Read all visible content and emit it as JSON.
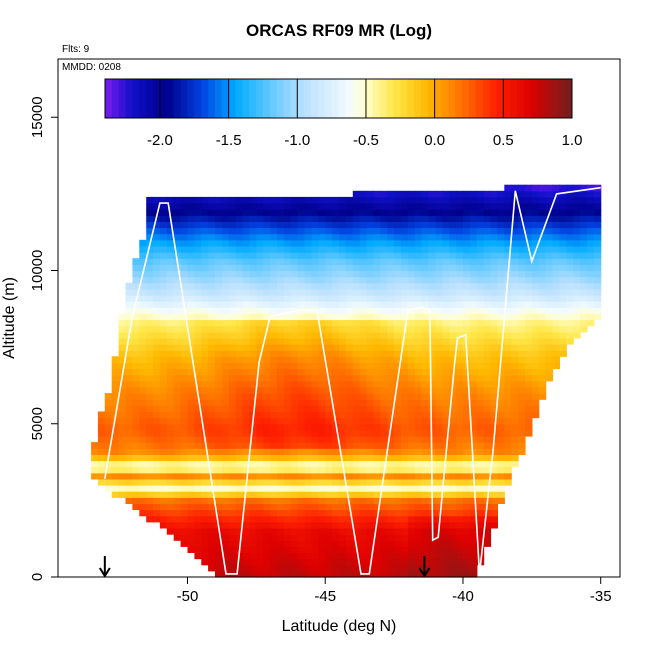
{
  "chart_data": {
    "type": "heatmap",
    "title": "ORCAS RF09 MR (Log)",
    "flights_label": "Flts: 9",
    "date_label": "MMDD: 0208",
    "xlabel": "Latitude (deg N)",
    "ylabel": "Altitude (m)",
    "xlim": [
      -54.7,
      -34.3
    ],
    "ylim": [
      0,
      16900
    ],
    "xticks": [
      -50,
      -45,
      -40,
      -35
    ],
    "xtick_labels": [
      "-50",
      "-45",
      "-40",
      "-35"
    ],
    "yticks": [
      0,
      5000,
      10000,
      15000
    ],
    "ytick_labels": [
      "0",
      "5000",
      "10000",
      "15000"
    ],
    "colorbar": {
      "range": [
        -2.4,
        1.0
      ],
      "ticks": [
        -2.0,
        -1.5,
        -1.0,
        -0.5,
        0.0,
        0.5,
        1.0
      ],
      "tick_labels": [
        "-2.0",
        "-1.5",
        "-1.0",
        "-0.5",
        "0.0",
        "0.5",
        "1.0"
      ],
      "stops": [
        {
          "v": -2.4,
          "color": "#7a1cf0"
        },
        {
          "v": -2.2,
          "color": "#1010c8"
        },
        {
          "v": -1.95,
          "color": "#00008a"
        },
        {
          "v": -1.7,
          "color": "#0040e0"
        },
        {
          "v": -1.45,
          "color": "#00aaff"
        },
        {
          "v": -1.2,
          "color": "#60c8ff"
        },
        {
          "v": -0.95,
          "color": "#b8e0ff"
        },
        {
          "v": -0.62,
          "color": "#f4fbff"
        },
        {
          "v": -0.5,
          "color": "#ffffcc"
        },
        {
          "v": -0.3,
          "color": "#ffe84a"
        },
        {
          "v": -0.05,
          "color": "#ffb800"
        },
        {
          "v": 0.2,
          "color": "#ff7000"
        },
        {
          "v": 0.45,
          "color": "#ff2000"
        },
        {
          "v": 0.7,
          "color": "#dd0000"
        },
        {
          "v": 1.0,
          "color": "#6e2020"
        }
      ]
    },
    "domain": {
      "lat_range": [
        -53.5,
        -35.0
      ],
      "bottom": [
        [
          -53.5,
          3200
        ],
        [
          -52.0,
          2300
        ],
        [
          -50.5,
          1300
        ],
        [
          -49.5,
          600
        ],
        [
          -48.8,
          0
        ],
        [
          -39.6,
          0
        ],
        [
          -39.0,
          1200
        ],
        [
          -38.6,
          2500
        ],
        [
          -38.0,
          3800
        ],
        [
          -37.4,
          5200
        ],
        [
          -36.8,
          6500
        ],
        [
          -36.0,
          7800
        ],
        [
          -35.0,
          8600
        ]
      ],
      "top": [
        [
          -53.5,
          3200
        ],
        [
          -53.3,
          5000
        ],
        [
          -52.8,
          6200
        ],
        [
          -52.5,
          7800
        ],
        [
          -52.2,
          9500
        ],
        [
          -51.6,
          11000
        ],
        [
          -51.5,
          12300
        ],
        [
          -45.0,
          12300
        ],
        [
          -44.0,
          12500
        ],
        [
          -38.6,
          12600
        ],
        [
          -38.6,
          12800
        ],
        [
          -35.0,
          12700
        ]
      ]
    },
    "field_profile": [
      {
        "alt": 0,
        "v": 0.78
      },
      {
        "alt": 1500,
        "v": 0.62
      },
      {
        "alt": 2500,
        "v": 0.2
      },
      {
        "alt": 2900,
        "v": -0.5
      },
      {
        "alt": 3300,
        "v": 0.1
      },
      {
        "alt": 3600,
        "v": -0.6
      },
      {
        "alt": 4000,
        "v": 0.1
      },
      {
        "alt": 4800,
        "v": 0.25
      },
      {
        "alt": 6000,
        "v": 0.1
      },
      {
        "alt": 7200,
        "v": -0.1
      },
      {
        "alt": 8300,
        "v": -0.4
      },
      {
        "alt": 9200,
        "v": -0.85
      },
      {
        "alt": 10300,
        "v": -1.2
      },
      {
        "alt": 11200,
        "v": -1.6
      },
      {
        "alt": 12000,
        "v": -2.0
      },
      {
        "alt": 12800,
        "v": -2.3
      }
    ],
    "flight_track": [
      [
        -53.0,
        3200
      ],
      [
        -52.0,
        8500
      ],
      [
        -51.0,
        12200
      ],
      [
        -50.7,
        12200
      ],
      [
        -48.6,
        100
      ],
      [
        -48.2,
        100
      ],
      [
        -47.4,
        7000
      ],
      [
        -47.0,
        8500
      ],
      [
        -46.0,
        8700
      ],
      [
        -45.3,
        8700
      ],
      [
        -43.7,
        100
      ],
      [
        -43.4,
        100
      ],
      [
        -42.0,
        8700
      ],
      [
        -41.5,
        8800
      ],
      [
        -41.2,
        8700
      ],
      [
        -41.1,
        1200
      ],
      [
        -40.9,
        1300
      ],
      [
        -40.3,
        7000
      ],
      [
        -40.2,
        7800
      ],
      [
        -39.9,
        7900
      ],
      [
        -39.4,
        100
      ],
      [
        -38.9,
        4200
      ],
      [
        -38.1,
        12600
      ],
      [
        -37.5,
        10300
      ],
      [
        -36.6,
        12500
      ],
      [
        -35.0,
        12700
      ]
    ],
    "arrows": [
      -53.0,
      -41.4
    ]
  }
}
